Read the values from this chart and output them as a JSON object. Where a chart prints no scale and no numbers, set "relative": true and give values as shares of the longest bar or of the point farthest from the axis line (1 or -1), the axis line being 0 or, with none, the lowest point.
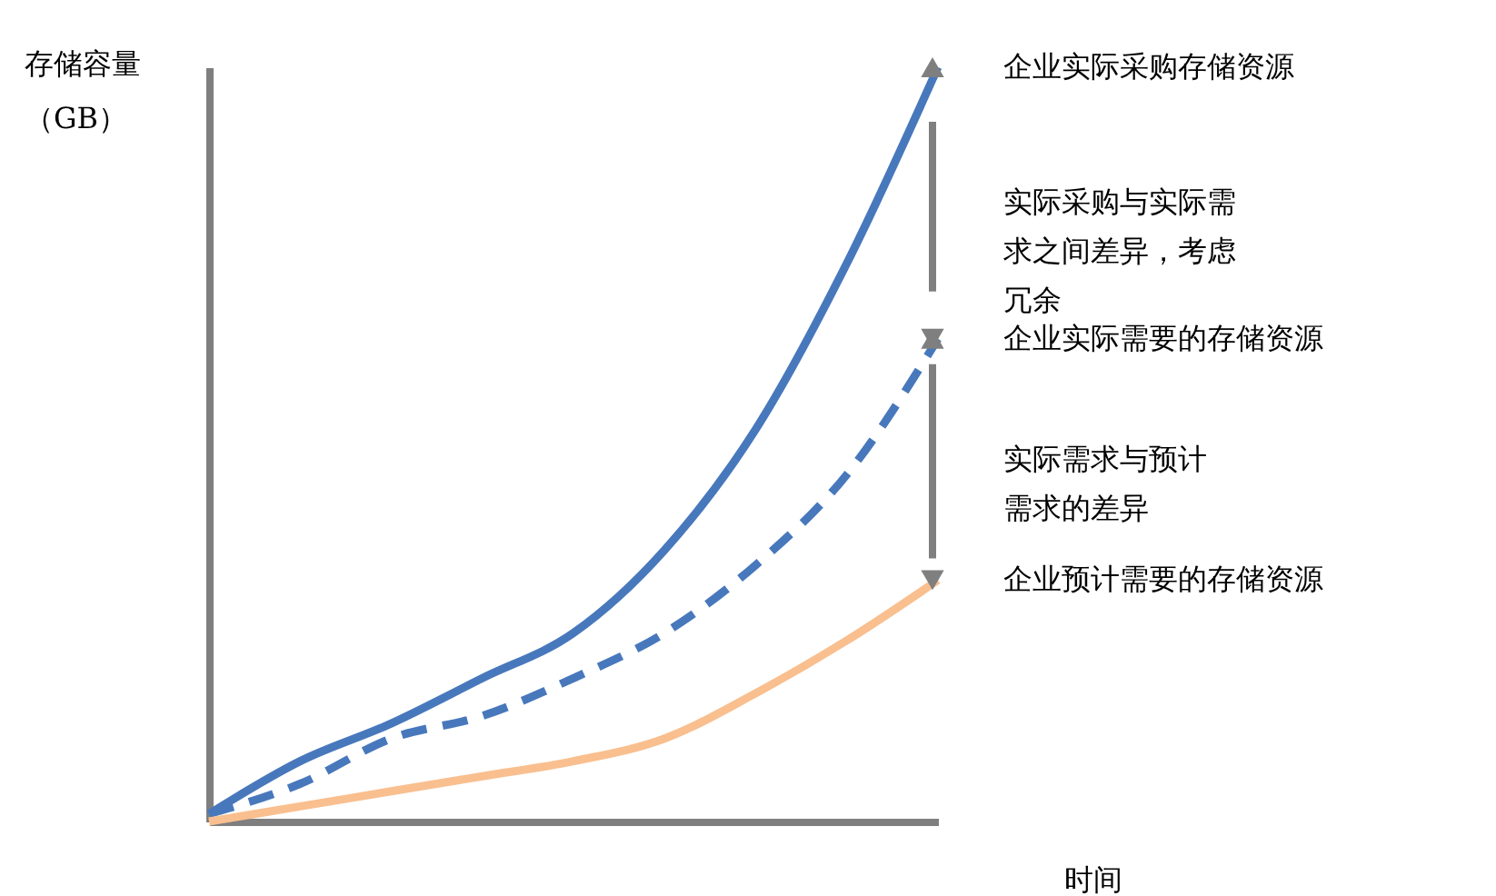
{
  "chart_data": {
    "type": "line",
    "relative": true,
    "xlabel": "时间",
    "ylabel": "存储容量（GB）",
    "categories": [
      null,
      null,
      null,
      null,
      null,
      null,
      null,
      null,
      null
    ],
    "series": [
      {
        "name": "企业实际采购存储资源",
        "color": "#4878bc",
        "line_style": "solid",
        "values": [
          0.01,
          0.08,
          0.13,
          0.19,
          0.25,
          0.36,
          0.52,
          0.74,
          1
        ]
      },
      {
        "name": "企业实际需要的存储资源",
        "color": "#4878bc",
        "line_style": "dashed",
        "values": [
          0.01,
          0.05,
          0.11,
          0.14,
          0.19,
          0.25,
          0.34,
          0.46,
          0.64
        ]
      },
      {
        "name": "企业预计需要的存储资源",
        "color": "#f9bf8f",
        "line_style": "solid",
        "values": [
          0,
          0.02,
          0.04,
          0.06,
          0.08,
          0.11,
          0.17,
          0.24,
          0.32
        ]
      }
    ],
    "annotations": [
      "实际采购与实际需求之间差异，考虑冗余",
      "实际需求与预计需求的差异"
    ]
  }
}
